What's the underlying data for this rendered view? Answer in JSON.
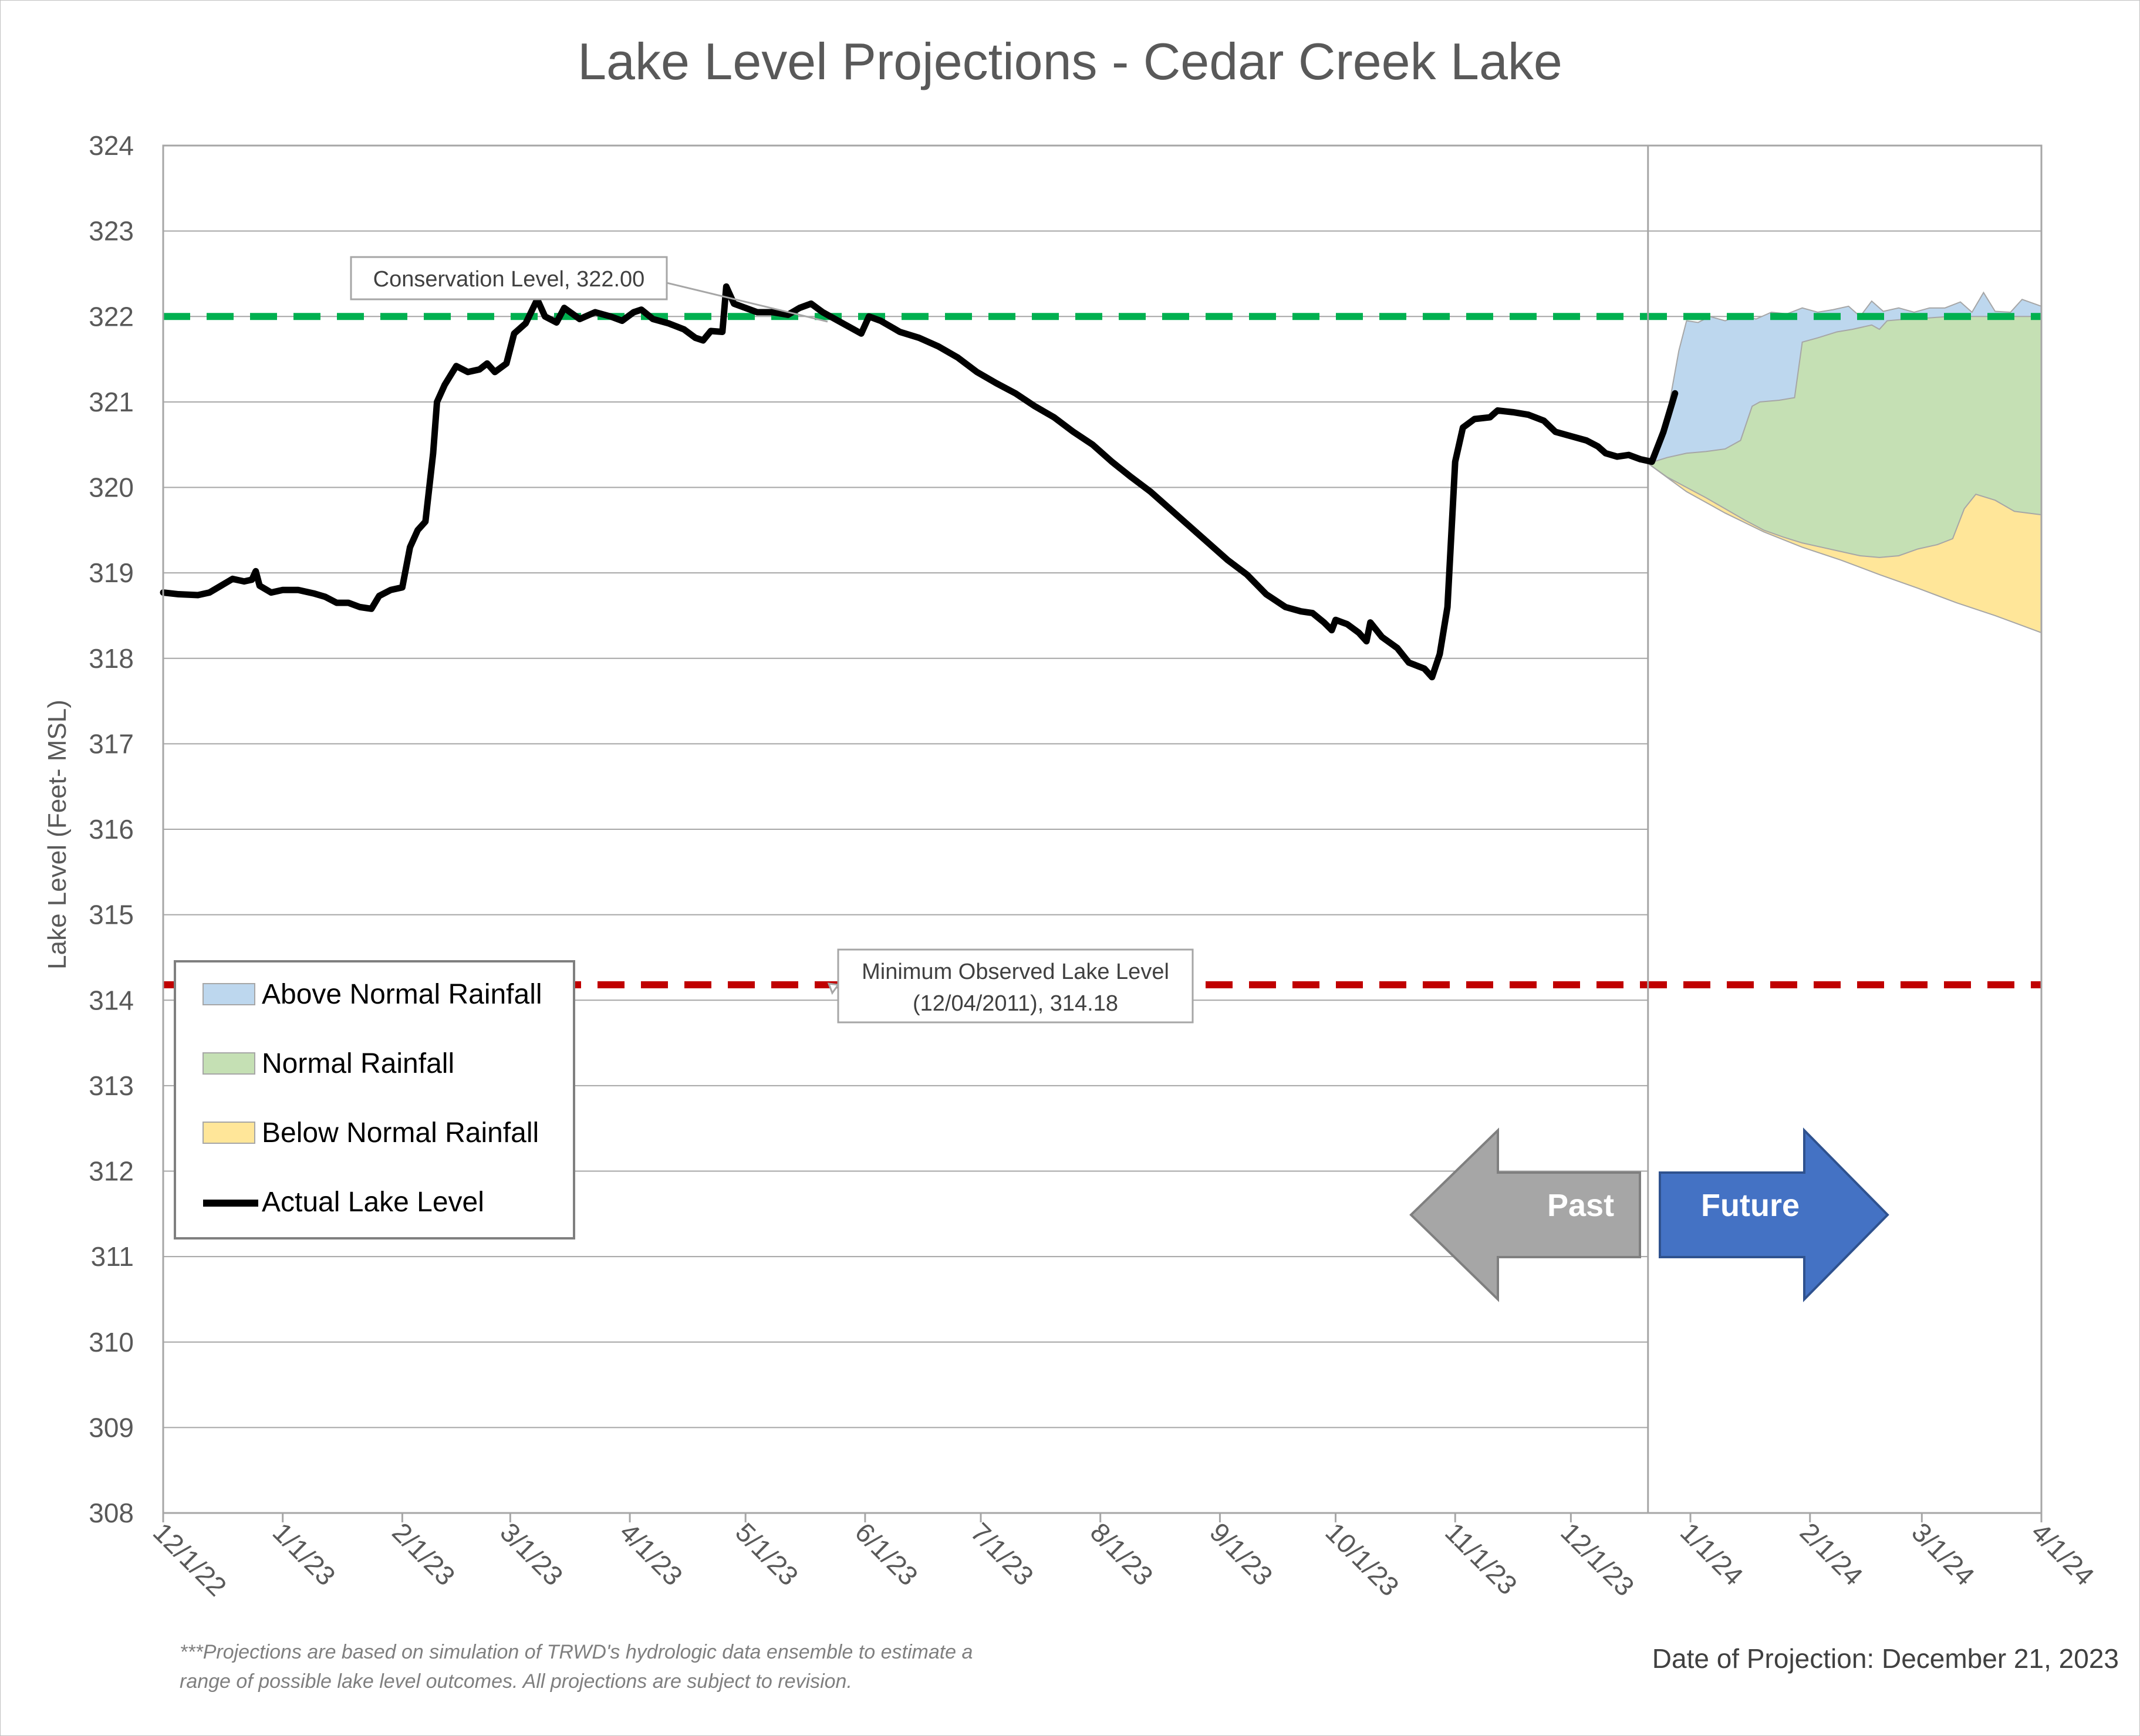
{
  "chart_data": {
    "type": "area",
    "title": "Lake Level Projections - Cedar Creek Lake",
    "ylabel": "Lake Level (Feet- MSL)",
    "xlabel": "",
    "ylim": [
      308,
      324
    ],
    "yticks": [
      308,
      309,
      310,
      311,
      312,
      313,
      314,
      315,
      316,
      317,
      318,
      319,
      320,
      321,
      322,
      323,
      324
    ],
    "x_ticks": [
      {
        "date": "2022-12-01",
        "label": "12/1/22"
      },
      {
        "date": "2023-01-01",
        "label": "1/1/23"
      },
      {
        "date": "2023-02-01",
        "label": "2/1/23"
      },
      {
        "date": "2023-03-01",
        "label": "3/1/23"
      },
      {
        "date": "2023-04-01",
        "label": "4/1/23"
      },
      {
        "date": "2023-05-01",
        "label": "5/1/23"
      },
      {
        "date": "2023-06-01",
        "label": "6/1/23"
      },
      {
        "date": "2023-07-01",
        "label": "7/1/23"
      },
      {
        "date": "2023-08-01",
        "label": "8/1/23"
      },
      {
        "date": "2023-09-01",
        "label": "9/1/23"
      },
      {
        "date": "2023-10-01",
        "label": "10/1/23"
      },
      {
        "date": "2023-11-01",
        "label": "11/1/23"
      },
      {
        "date": "2023-12-01",
        "label": "12/1/23"
      },
      {
        "date": "2024-01-01",
        "label": "1/1/24"
      },
      {
        "date": "2024-02-01",
        "label": "2/1/24"
      },
      {
        "date": "2024-03-01",
        "label": "3/1/24"
      },
      {
        "date": "2024-04-01",
        "label": "4/1/24"
      }
    ],
    "xlim": [
      "2022-12-01",
      "2024-04-01"
    ],
    "grid": true,
    "legend_position": "bottom-left",
    "reference_lines": [
      {
        "name": "Conservation Level",
        "label": "Conservation Level, 322.00",
        "value": 322.0,
        "color": "#00b050"
      },
      {
        "name": "Minimum Observed Lake Level",
        "label_line1": "Minimum Observed Lake Level",
        "label_line2": "(12/04/2011), 314.18",
        "value": 314.18,
        "color": "#c00000"
      }
    ],
    "projection_date": "2023-12-21",
    "series": [
      {
        "name": "Above Normal Rainfall",
        "kind": "area",
        "color": "#bdd7ee",
        "points": [
          [
            "2023-12-21",
            320.28
          ],
          [
            "2023-12-23",
            320.5
          ],
          [
            "2023-12-25",
            320.6
          ],
          [
            "2023-12-27",
            321.1
          ],
          [
            "2023-12-29",
            321.6
          ],
          [
            "2023-12-31",
            321.95
          ],
          [
            "2024-01-03",
            321.93
          ],
          [
            "2024-01-06",
            322.0
          ],
          [
            "2024-01-10",
            321.95
          ],
          [
            "2024-01-14",
            322.02
          ],
          [
            "2024-01-18",
            321.97
          ],
          [
            "2024-01-22",
            322.05
          ],
          [
            "2024-01-26",
            322.03
          ],
          [
            "2024-01-30",
            322.1
          ],
          [
            "2024-02-03",
            322.05
          ],
          [
            "2024-02-07",
            322.08
          ],
          [
            "2024-02-11",
            322.12
          ],
          [
            "2024-02-14",
            322.0
          ],
          [
            "2024-02-17",
            322.18
          ],
          [
            "2024-02-20",
            322.06
          ],
          [
            "2024-02-24",
            322.1
          ],
          [
            "2024-02-28",
            322.05
          ],
          [
            "2024-03-03",
            322.1
          ],
          [
            "2024-03-07",
            322.1
          ],
          [
            "2024-03-11",
            322.17
          ],
          [
            "2024-03-14",
            322.05
          ],
          [
            "2024-03-17",
            322.28
          ],
          [
            "2024-03-20",
            322.06
          ],
          [
            "2024-03-24",
            322.05
          ],
          [
            "2024-03-27",
            322.2
          ],
          [
            "2024-04-01",
            322.12
          ]
        ]
      },
      {
        "name": "Normal Rainfall",
        "kind": "area",
        "color": "#c5e0b4",
        "points": [
          [
            "2023-12-21",
            320.28
          ],
          [
            "2023-12-26",
            320.35
          ],
          [
            "2023-12-31",
            320.4
          ],
          [
            "2024-01-05",
            320.42
          ],
          [
            "2024-01-10",
            320.45
          ],
          [
            "2024-01-14",
            320.55
          ],
          [
            "2024-01-17",
            320.95
          ],
          [
            "2024-01-19",
            321.0
          ],
          [
            "2024-01-24",
            321.02
          ],
          [
            "2024-01-28",
            321.05
          ],
          [
            "2024-01-30",
            321.7
          ],
          [
            "2024-02-03",
            321.75
          ],
          [
            "2024-02-08",
            321.82
          ],
          [
            "2024-02-12",
            321.85
          ],
          [
            "2024-02-17",
            321.9
          ],
          [
            "2024-02-19",
            321.85
          ],
          [
            "2024-02-21",
            321.95
          ],
          [
            "2024-02-26",
            321.97
          ],
          [
            "2024-03-02",
            321.98
          ],
          [
            "2024-03-08",
            322.0
          ],
          [
            "2024-03-15",
            322.0
          ],
          [
            "2024-03-22",
            322.0
          ],
          [
            "2024-04-01",
            322.0
          ]
        ]
      },
      {
        "name": "Below Normal Rainfall",
        "kind": "area",
        "color": "#ffe699",
        "points": [
          [
            "2023-12-21",
            320.28
          ],
          [
            "2023-12-26",
            320.12
          ],
          [
            "2023-12-31",
            320.0
          ],
          [
            "2024-01-05",
            319.88
          ],
          [
            "2024-01-10",
            319.75
          ],
          [
            "2024-01-15",
            319.62
          ],
          [
            "2024-01-20",
            319.5
          ],
          [
            "2024-01-25",
            319.42
          ],
          [
            "2024-01-30",
            319.35
          ],
          [
            "2024-02-04",
            319.3
          ],
          [
            "2024-02-09",
            319.25
          ],
          [
            "2024-02-14",
            319.2
          ],
          [
            "2024-02-19",
            319.18
          ],
          [
            "2024-02-24",
            319.2
          ],
          [
            "2024-02-29",
            319.28
          ],
          [
            "2024-03-05",
            319.33
          ],
          [
            "2024-03-09",
            319.4
          ],
          [
            "2024-03-12",
            319.75
          ],
          [
            "2024-03-15",
            319.92
          ],
          [
            "2024-03-20",
            319.85
          ],
          [
            "2024-03-25",
            319.72
          ],
          [
            "2024-04-01",
            319.68
          ]
        ]
      },
      {
        "name": "Below Normal Rainfall (lower bound)",
        "kind": "area-bottom",
        "color": "#ffe699",
        "points": [
          [
            "2023-12-21",
            320.28
          ],
          [
            "2023-12-31",
            319.95
          ],
          [
            "2024-01-10",
            319.7
          ],
          [
            "2024-01-20",
            319.48
          ],
          [
            "2024-01-30",
            319.3
          ],
          [
            "2024-02-09",
            319.15
          ],
          [
            "2024-02-19",
            318.98
          ],
          [
            "2024-02-29",
            318.82
          ],
          [
            "2024-03-10",
            318.65
          ],
          [
            "2024-03-20",
            318.5
          ],
          [
            "2024-04-01",
            318.3
          ]
        ]
      },
      {
        "name": "Actual Lake Level",
        "kind": "line",
        "color": "#000000",
        "points": [
          [
            "2022-12-01",
            318.77
          ],
          [
            "2022-12-05",
            318.75
          ],
          [
            "2022-12-10",
            318.74
          ],
          [
            "2022-12-13",
            318.77
          ],
          [
            "2022-12-16",
            318.85
          ],
          [
            "2022-12-19",
            318.93
          ],
          [
            "2022-12-22",
            318.9
          ],
          [
            "2022-12-24",
            318.92
          ],
          [
            "2022-12-25",
            319.02
          ],
          [
            "2022-12-26",
            318.85
          ],
          [
            "2022-12-29",
            318.77
          ],
          [
            "2023-01-01",
            318.8
          ],
          [
            "2023-01-05",
            318.8
          ],
          [
            "2023-01-09",
            318.76
          ],
          [
            "2023-01-12",
            318.72
          ],
          [
            "2023-01-15",
            318.65
          ],
          [
            "2023-01-18",
            318.65
          ],
          [
            "2023-01-21",
            318.6
          ],
          [
            "2023-01-24",
            318.58
          ],
          [
            "2023-01-26",
            318.73
          ],
          [
            "2023-01-29",
            318.8
          ],
          [
            "2023-02-01",
            318.83
          ],
          [
            "2023-02-03",
            319.3
          ],
          [
            "2023-02-05",
            319.5
          ],
          [
            "2023-02-07",
            319.6
          ],
          [
            "2023-02-09",
            320.4
          ],
          [
            "2023-02-10",
            321.0
          ],
          [
            "2023-02-12",
            321.2
          ],
          [
            "2023-02-15",
            321.42
          ],
          [
            "2023-02-18",
            321.35
          ],
          [
            "2023-02-21",
            321.38
          ],
          [
            "2023-02-23",
            321.45
          ],
          [
            "2023-02-25",
            321.35
          ],
          [
            "2023-02-28",
            321.45
          ],
          [
            "2023-03-02",
            321.8
          ],
          [
            "2023-03-05",
            321.92
          ],
          [
            "2023-03-08",
            322.2
          ],
          [
            "2023-03-10",
            322.0
          ],
          [
            "2023-03-13",
            321.93
          ],
          [
            "2023-03-15",
            322.1
          ],
          [
            "2023-03-19",
            321.97
          ],
          [
            "2023-03-23",
            322.05
          ],
          [
            "2023-03-27",
            322.0
          ],
          [
            "2023-03-30",
            321.95
          ],
          [
            "2023-04-02",
            322.05
          ],
          [
            "2023-04-04",
            322.08
          ],
          [
            "2023-04-07",
            321.97
          ],
          [
            "2023-04-11",
            321.92
          ],
          [
            "2023-04-15",
            321.85
          ],
          [
            "2023-04-18",
            321.75
          ],
          [
            "2023-04-20",
            321.72
          ],
          [
            "2023-04-22",
            321.83
          ],
          [
            "2023-04-25",
            321.82
          ],
          [
            "2023-04-26",
            322.35
          ],
          [
            "2023-04-28",
            322.15
          ],
          [
            "2023-05-01",
            322.1
          ],
          [
            "2023-05-04",
            322.05
          ],
          [
            "2023-05-08",
            322.05
          ],
          [
            "2023-05-12",
            322.02
          ],
          [
            "2023-05-15",
            322.1
          ],
          [
            "2023-05-18",
            322.15
          ],
          [
            "2023-05-21",
            322.05
          ],
          [
            "2023-05-25",
            321.95
          ],
          [
            "2023-05-29",
            321.85
          ],
          [
            "2023-05-31",
            321.8
          ],
          [
            "2023-06-02",
            322.0
          ],
          [
            "2023-06-05",
            321.95
          ],
          [
            "2023-06-10",
            321.82
          ],
          [
            "2023-06-15",
            321.75
          ],
          [
            "2023-06-20",
            321.65
          ],
          [
            "2023-06-25",
            321.52
          ],
          [
            "2023-06-30",
            321.35
          ],
          [
            "2023-07-05",
            321.22
          ],
          [
            "2023-07-10",
            321.1
          ],
          [
            "2023-07-15",
            320.95
          ],
          [
            "2023-07-20",
            320.82
          ],
          [
            "2023-07-25",
            320.65
          ],
          [
            "2023-07-30",
            320.5
          ],
          [
            "2023-08-04",
            320.3
          ],
          [
            "2023-08-09",
            320.12
          ],
          [
            "2023-08-14",
            319.95
          ],
          [
            "2023-08-19",
            319.75
          ],
          [
            "2023-08-24",
            319.55
          ],
          [
            "2023-08-29",
            319.35
          ],
          [
            "2023-09-03",
            319.15
          ],
          [
            "2023-09-08",
            318.98
          ],
          [
            "2023-09-13",
            318.75
          ],
          [
            "2023-09-18",
            318.6
          ],
          [
            "2023-09-22",
            318.55
          ],
          [
            "2023-09-25",
            318.53
          ],
          [
            "2023-09-28",
            318.42
          ],
          [
            "2023-09-30",
            318.33
          ],
          [
            "2023-10-01",
            318.45
          ],
          [
            "2023-10-04",
            318.4
          ],
          [
            "2023-10-07",
            318.3
          ],
          [
            "2023-10-09",
            318.2
          ],
          [
            "2023-10-10",
            318.42
          ],
          [
            "2023-10-13",
            318.25
          ],
          [
            "2023-10-17",
            318.12
          ],
          [
            "2023-10-20",
            317.95
          ],
          [
            "2023-10-24",
            317.88
          ],
          [
            "2023-10-26",
            317.78
          ],
          [
            "2023-10-28",
            318.05
          ],
          [
            "2023-10-30",
            318.6
          ],
          [
            "2023-11-01",
            320.3
          ],
          [
            "2023-11-03",
            320.7
          ],
          [
            "2023-11-06",
            320.8
          ],
          [
            "2023-11-10",
            320.82
          ],
          [
            "2023-11-12",
            320.9
          ],
          [
            "2023-11-16",
            320.88
          ],
          [
            "2023-11-20",
            320.85
          ],
          [
            "2023-11-24",
            320.78
          ],
          [
            "2023-11-27",
            320.65
          ],
          [
            "2023-12-01",
            320.6
          ],
          [
            "2023-12-05",
            320.55
          ],
          [
            "2023-12-08",
            320.48
          ],
          [
            "2023-12-10",
            320.4
          ],
          [
            "2023-12-13",
            320.36
          ],
          [
            "2023-12-16",
            320.38
          ],
          [
            "2023-12-19",
            320.33
          ],
          [
            "2023-12-22",
            320.3
          ],
          [
            "2023-12-25",
            320.65
          ],
          [
            "2023-12-27",
            320.95
          ],
          [
            "2023-12-28",
            321.1
          ]
        ]
      }
    ]
  },
  "legend": {
    "items": [
      {
        "label": "Above Normal Rainfall",
        "color": "#bdd7ee"
      },
      {
        "label": "Normal Rainfall",
        "color": "#c5e0b4"
      },
      {
        "label": "Below Normal Rainfall",
        "color": "#ffe699"
      },
      {
        "label": "Actual Lake Level",
        "color": "#000000"
      }
    ]
  },
  "arrows": {
    "past_label": "Past",
    "past_color": "#a6a6a6",
    "future_label": "Future",
    "future_color": "#4472c4"
  },
  "footnote": {
    "line1": "***Projections are based on simulation of TRWD's hydrologic data ensemble to estimate a",
    "line2": "range of possible lake level outcomes.  All projections are subject to revision."
  },
  "projection_date_text": "Date of Projection: December 21, 2023"
}
